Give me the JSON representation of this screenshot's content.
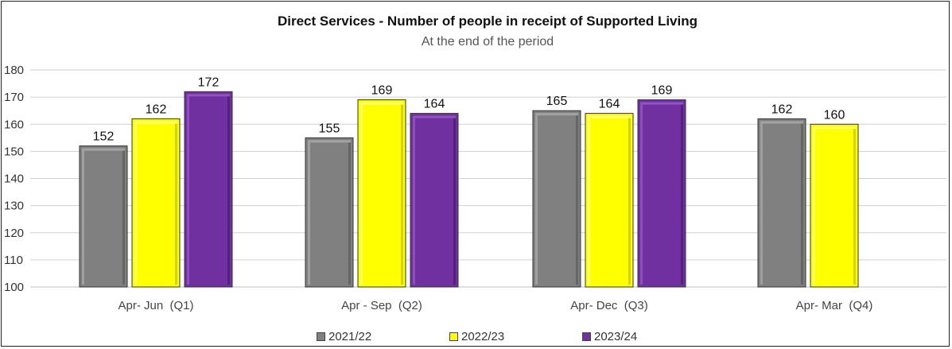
{
  "chart_data": {
    "type": "bar",
    "title": "Direct Services - Number of people in receipt of Supported Living",
    "subtitle": "At the end of the period",
    "xlabel": "",
    "ylabel": "",
    "ylim": [
      100,
      180
    ],
    "yticks": [
      100,
      110,
      120,
      130,
      140,
      150,
      160,
      170,
      180
    ],
    "grid": true,
    "legend_position": "bottom",
    "categories": [
      "Apr- Jun  (Q1)",
      "Apr - Sep  (Q2)",
      "Apr- Dec  (Q3)",
      "Apr- Mar  (Q4)"
    ],
    "series": [
      {
        "name": "2021/22",
        "color": "#808080",
        "values": [
          152,
          155,
          165,
          162
        ]
      },
      {
        "name": "2022/23",
        "color": "#FFFF00",
        "values": [
          162,
          169,
          164,
          160
        ]
      },
      {
        "name": "2023/24",
        "color": "#7030A0",
        "values": [
          172,
          164,
          169,
          null
        ]
      }
    ]
  }
}
